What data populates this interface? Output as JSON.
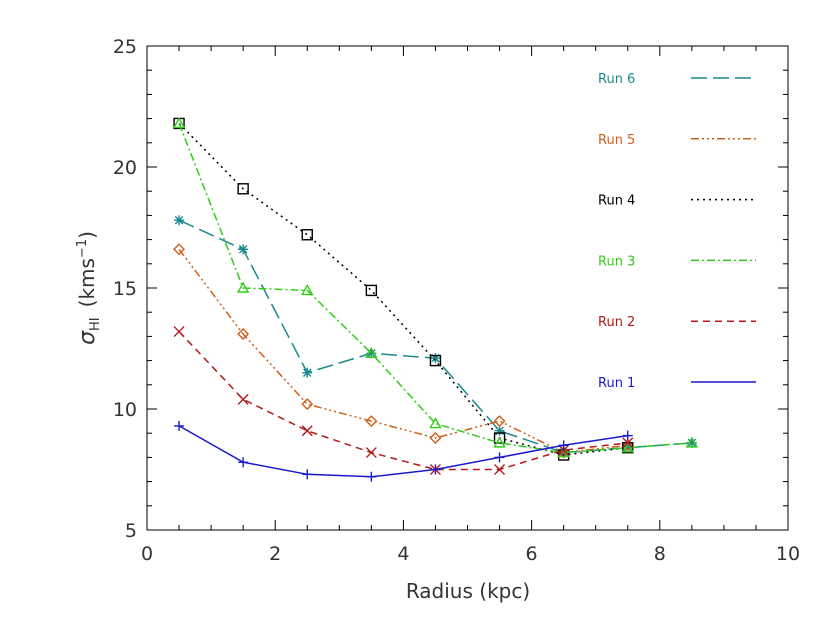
{
  "chart_data": {
    "type": "line",
    "xlabel": "Radius (kpc)",
    "ylabel_prefix": "σ",
    "ylabel_sub": "HI",
    "ylabel_unit_prefix": "(kms",
    "ylabel_unit_sup": "−1",
    "ylabel_unit_suffix": ")",
    "xlim": [
      0,
      10
    ],
    "ylim": [
      5,
      25
    ],
    "x_ticks": [
      0,
      2,
      4,
      6,
      8,
      10
    ],
    "y_ticks": [
      5,
      10,
      15,
      20,
      25
    ],
    "x_tick_labels": [
      "0",
      "2",
      "4",
      "6",
      "8",
      "10"
    ],
    "y_tick_labels": [
      "5",
      "10",
      "15",
      "20",
      "25"
    ],
    "legend_position": "top-right",
    "series": [
      {
        "name": "Run 6",
        "color": "#1a8a8f",
        "dash": "dash-long",
        "marker": "asterisk",
        "x": [
          0.5,
          1.5,
          2.5,
          3.5,
          4.5,
          5.5,
          6.5,
          7.5,
          8.5
        ],
        "y": [
          17.8,
          16.6,
          11.5,
          12.3,
          12.1,
          9.1,
          8.2,
          8.4,
          8.6
        ]
      },
      {
        "name": "Run 5",
        "color": "#d2601a",
        "dash": "dash-dot-dot-dot",
        "marker": "diamond",
        "x": [
          0.5,
          1.5,
          2.5,
          3.5,
          4.5,
          5.5,
          6.5,
          7.5
        ],
        "y": [
          16.6,
          13.1,
          10.2,
          9.5,
          8.8,
          9.5,
          8.2,
          8.5
        ]
      },
      {
        "name": "Run 4",
        "color": "#000000",
        "dash": "dot",
        "marker": "square",
        "x": [
          0.5,
          1.5,
          2.5,
          3.5,
          4.5,
          5.5,
          6.5,
          7.5
        ],
        "y": [
          21.8,
          19.1,
          17.2,
          14.9,
          12.0,
          8.8,
          8.1,
          8.4
        ]
      },
      {
        "name": "Run 3",
        "color": "#33cc1a",
        "dash": "dash-dot",
        "marker": "triangle",
        "x": [
          0.5,
          1.5,
          2.5,
          3.5,
          4.5,
          5.5,
          6.5,
          7.5,
          8.5
        ],
        "y": [
          21.8,
          15.0,
          14.9,
          12.3,
          9.4,
          8.6,
          8.2,
          8.4,
          8.6
        ]
      },
      {
        "name": "Run 2",
        "color": "#b01a1a",
        "dash": "dash",
        "marker": "cross",
        "x": [
          0.5,
          1.5,
          2.5,
          3.5,
          4.5,
          5.5,
          6.5,
          7.5
        ],
        "y": [
          13.2,
          10.4,
          9.1,
          8.2,
          7.5,
          7.5,
          8.3,
          8.6
        ]
      },
      {
        "name": "Run 1",
        "color": "#1a1acc",
        "dash": "solid",
        "marker": "plus",
        "x": [
          0.5,
          1.5,
          2.5,
          3.5,
          4.5,
          5.5,
          6.5,
          7.5
        ],
        "y": [
          9.3,
          7.8,
          7.3,
          7.2,
          7.5,
          8.0,
          8.5,
          8.9
        ]
      }
    ]
  }
}
